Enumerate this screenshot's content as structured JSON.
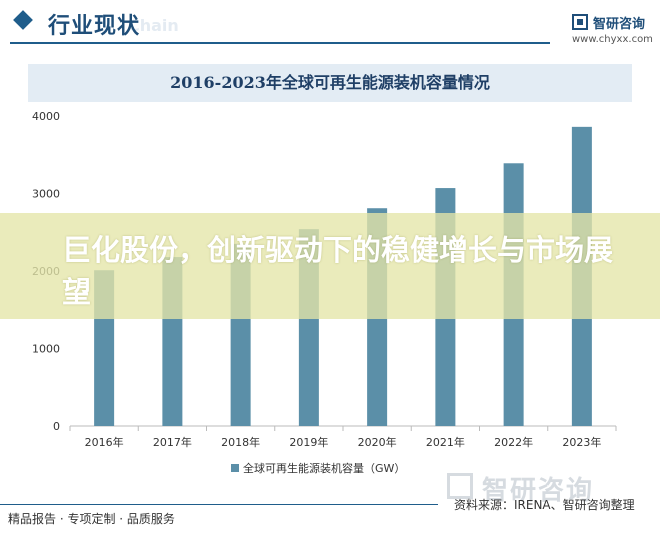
{
  "header": {
    "title": "行业现状",
    "watermark": "Chain",
    "logo_name": "智研咨询",
    "logo_url": "www.chyxx.com"
  },
  "chart_data": {
    "type": "bar",
    "title": "2016-2023年全球可再生能源装机容量情况",
    "categories": [
      "2016年",
      "2017年",
      "2018年",
      "2019年",
      "2020年",
      "2021年",
      "2022年",
      "2023年"
    ],
    "series": [
      {
        "name": "全球可再生能源装机容量（GW）",
        "values": [
          2010,
          2180,
          2350,
          2540,
          2810,
          3070,
          3390,
          3860
        ]
      }
    ],
    "ylim": [
      0,
      4000
    ],
    "yticks": [
      0,
      1000,
      2000,
      3000,
      4000
    ],
    "bar_color": "#5b8fa8",
    "grid": false,
    "legend": "bottom"
  },
  "overlay": {
    "headline": "巨化股份，创新驱动下的稳健增长与市场展望"
  },
  "footer": {
    "left": "精品报告 · 专项定制 · 品质服务",
    "source": "资料来源：IRENA、智研咨询整理",
    "watermark_logo": "智研咨询"
  }
}
